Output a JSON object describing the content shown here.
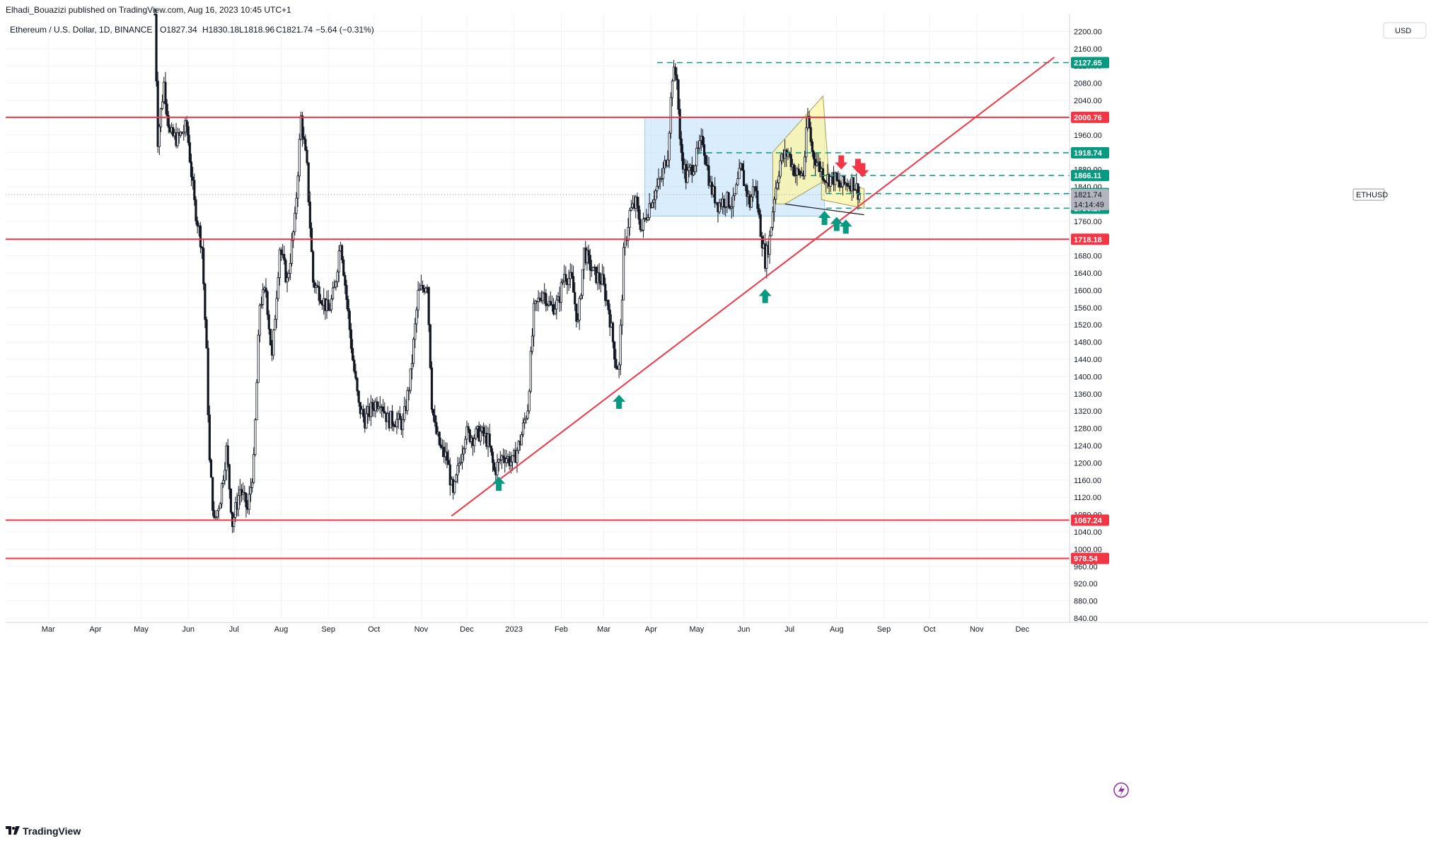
{
  "publisher": "Elhadi_Bouazizi published on TradingView.com, Aug 16, 2023 10:45 UTC+1",
  "footer": {
    "brand": "TradingView",
    "logo_icon": "tradingview-logo-icon"
  },
  "colors": {
    "up": "#131722",
    "down": "#131722",
    "support_line": "#f23645",
    "dashed_line": "#089981",
    "trendline": "#f23645",
    "range_box": "#bbdefb",
    "channel": "#fff59d",
    "up_arrow": "#089981",
    "down_arrow": "#f23645"
  },
  "chart_data": {
    "type": "candlestick",
    "title": "Ethereum / U.S. Dollar, 1D, BINANCE",
    "ohlc_header": {
      "o": "O1827.34",
      "h": "H1830.18",
      "l": "L1818.96",
      "c": "C1821.74",
      "chg": "−5.64 (−0.31%)"
    },
    "currency": "USD",
    "symbol_label": "ETHUSD",
    "last_price": "1821.74",
    "countdown": "14:14:49",
    "ylim": [
      840,
      2240
    ],
    "y_ticks": [
      "840.00",
      "880.00",
      "920.00",
      "960.00",
      "1000.00",
      "1040.00",
      "1080.00",
      "1120.00",
      "1160.00",
      "1200.00",
      "1240.00",
      "1280.00",
      "1320.00",
      "1360.00",
      "1400.00",
      "1440.00",
      "1480.00",
      "1520.00",
      "1560.00",
      "1600.00",
      "1640.00",
      "1680.00",
      "1720.00",
      "1760.00",
      "1800.00",
      "1840.00",
      "1880.00",
      "1920.00",
      "1960.00",
      "2000.00",
      "2040.00",
      "2080.00",
      "2120.00",
      "2160.00",
      "2200.00"
    ],
    "x_ticks": [
      "Mar",
      "Apr",
      "May",
      "Jun",
      "Jul",
      "Aug",
      "Sep",
      "Oct",
      "Nov",
      "Dec",
      "2023",
      "Feb",
      "Mar",
      "Apr",
      "May",
      "Jun",
      "Jul",
      "Aug",
      "Sep",
      "Oct",
      "Nov",
      "Dec"
    ],
    "x_tick_dates": [
      "2022-03-01",
      "2022-04-01",
      "2022-05-01",
      "2022-06-01",
      "2022-07-01",
      "2022-08-01",
      "2022-09-01",
      "2022-10-01",
      "2022-11-01",
      "2022-12-01",
      "2023-01-01",
      "2023-02-01",
      "2023-03-01",
      "2023-04-01",
      "2023-05-01",
      "2023-06-01",
      "2023-07-01",
      "2023-08-01",
      "2023-09-01",
      "2023-10-01",
      "2023-11-01",
      "2023-12-01"
    ],
    "price_path": [
      [
        "2022-05-10",
        2240
      ],
      [
        "2022-05-12",
        1950
      ],
      [
        "2022-05-16",
        2080
      ],
      [
        "2022-05-20",
        1960
      ],
      [
        "2022-05-25",
        1950
      ],
      [
        "2022-05-31",
        1980
      ],
      [
        "2022-06-05",
        1800
      ],
      [
        "2022-06-10",
        1700
      ],
      [
        "2022-06-13",
        1450
      ],
      [
        "2022-06-15",
        1200
      ],
      [
        "2022-06-18",
        1060
      ],
      [
        "2022-06-22",
        1120
      ],
      [
        "2022-06-26",
        1230
      ],
      [
        "2022-06-30",
        1060
      ],
      [
        "2022-07-05",
        1140
      ],
      [
        "2022-07-10",
        1090
      ],
      [
        "2022-07-14",
        1200
      ],
      [
        "2022-07-18",
        1570
      ],
      [
        "2022-07-22",
        1600
      ],
      [
        "2022-07-26",
        1440
      ],
      [
        "2022-07-31",
        1700
      ],
      [
        "2022-08-05",
        1620
      ],
      [
        "2022-08-10",
        1760
      ],
      [
        "2022-08-14",
        2000
      ],
      [
        "2022-08-18",
        1880
      ],
      [
        "2022-08-22",
        1620
      ],
      [
        "2022-08-27",
        1590
      ],
      [
        "2022-09-01",
        1550
      ],
      [
        "2022-09-05",
        1600
      ],
      [
        "2022-09-09",
        1720
      ],
      [
        "2022-09-13",
        1580
      ],
      [
        "2022-09-17",
        1440
      ],
      [
        "2022-09-21",
        1330
      ],
      [
        "2022-09-25",
        1300
      ],
      [
        "2022-09-30",
        1330
      ],
      [
        "2022-10-05",
        1350
      ],
      [
        "2022-10-10",
        1300
      ],
      [
        "2022-10-15",
        1300
      ],
      [
        "2022-10-20",
        1290
      ],
      [
        "2022-10-25",
        1400
      ],
      [
        "2022-10-30",
        1590
      ],
      [
        "2022-11-05",
        1620
      ],
      [
        "2022-11-08",
        1340
      ],
      [
        "2022-11-10",
        1280
      ],
      [
        "2022-11-14",
        1230
      ],
      [
        "2022-11-18",
        1210
      ],
      [
        "2022-11-22",
        1120
      ],
      [
        "2022-11-26",
        1200
      ],
      [
        "2022-11-30",
        1270
      ],
      [
        "2022-12-05",
        1260
      ],
      [
        "2022-12-10",
        1270
      ],
      [
        "2022-12-15",
        1250
      ],
      [
        "2022-12-19",
        1180
      ],
      [
        "2022-12-25",
        1220
      ],
      [
        "2022-12-31",
        1200
      ],
      [
        "2023-01-05",
        1250
      ],
      [
        "2023-01-10",
        1330
      ],
      [
        "2023-01-14",
        1550
      ],
      [
        "2023-01-20",
        1600
      ],
      [
        "2023-01-25",
        1560
      ],
      [
        "2023-01-30",
        1570
      ],
      [
        "2023-02-03",
        1640
      ],
      [
        "2023-02-08",
        1620
      ],
      [
        "2023-02-12",
        1520
      ],
      [
        "2023-02-16",
        1690
      ],
      [
        "2023-02-22",
        1640
      ],
      [
        "2023-02-28",
        1620
      ],
      [
        "2023-03-04",
        1560
      ],
      [
        "2023-03-09",
        1430
      ],
      [
        "2023-03-11",
        1420
      ],
      [
        "2023-03-14",
        1680
      ],
      [
        "2023-03-18",
        1780
      ],
      [
        "2023-03-22",
        1800
      ],
      [
        "2023-03-26",
        1740
      ],
      [
        "2023-03-31",
        1800
      ],
      [
        "2023-04-04",
        1830
      ],
      [
        "2023-04-08",
        1860
      ],
      [
        "2023-04-12",
        1920
      ],
      [
        "2023-04-15",
        2100
      ],
      [
        "2023-04-18",
        2100
      ],
      [
        "2023-04-20",
        1940
      ],
      [
        "2023-04-24",
        1860
      ],
      [
        "2023-04-30",
        1900
      ],
      [
        "2023-05-05",
        1950
      ],
      [
        "2023-05-10",
        1840
      ],
      [
        "2023-05-15",
        1800
      ],
      [
        "2023-05-20",
        1810
      ],
      [
        "2023-05-25",
        1800
      ],
      [
        "2023-05-30",
        1880
      ],
      [
        "2023-06-05",
        1800
      ],
      [
        "2023-06-08",
        1850
      ],
      [
        "2023-06-12",
        1740
      ],
      [
        "2023-06-15",
        1670
      ],
      [
        "2023-06-18",
        1720
      ],
      [
        "2023-06-21",
        1820
      ],
      [
        "2023-06-25",
        1900
      ],
      [
        "2023-06-30",
        1920
      ],
      [
        "2023-07-05",
        1870
      ],
      [
        "2023-07-10",
        1870
      ],
      [
        "2023-07-13",
        2000
      ],
      [
        "2023-07-16",
        1920
      ],
      [
        "2023-07-20",
        1890
      ],
      [
        "2023-07-25",
        1860
      ],
      [
        "2023-07-30",
        1860
      ],
      [
        "2023-08-03",
        1840
      ],
      [
        "2023-08-08",
        1850
      ],
      [
        "2023-08-12",
        1850
      ],
      [
        "2023-08-16",
        1821.74
      ]
    ],
    "horizontal_levels": [
      {
        "label": "2000.76",
        "value": 2000.76,
        "style": "solid"
      },
      {
        "label": "1718.18",
        "value": 1718.18,
        "style": "solid"
      },
      {
        "label": "1067.24",
        "value": 1067.24,
        "style": "solid"
      },
      {
        "label": "978.54",
        "value": 978.54,
        "style": "solid"
      },
      {
        "label": "2127.65",
        "value": 2127.65,
        "style": "dashed",
        "from": "2023-04-05"
      },
      {
        "label": "1918.74",
        "value": 1918.74,
        "style": "dashed",
        "from": "2023-05-01"
      },
      {
        "label": "1866.11",
        "value": 1866.11,
        "style": "dashed",
        "from": "2023-07-15"
      },
      {
        "label": "1824.14",
        "value": 1824.14,
        "style": "dashed",
        "from": "2023-07-25"
      },
      {
        "label": "1790.27",
        "value": 1790.27,
        "style": "dashed",
        "from": "2023-07-25"
      }
    ],
    "trendlines": [
      {
        "name": "ascending-support",
        "from": [
          "2022-11-21",
          1077
        ],
        "to": [
          "2023-12-22",
          2140
        ]
      },
      {
        "name": "channel-lower",
        "from": [
          "2023-06-28",
          1800
        ],
        "to": [
          "2023-08-19",
          1775
        ]
      }
    ],
    "range_box": {
      "from": "2023-03-28",
      "to": "2023-07-24",
      "top": 2000,
      "bottom": 1772
    },
    "channel_up": [
      [
        "2023-06-20",
        1800
      ],
      [
        "2023-06-20",
        1920
      ],
      [
        "2023-07-23",
        2050
      ],
      [
        "2023-07-27",
        1860
      ],
      [
        "2023-06-28",
        1800
      ]
    ],
    "channel_down": [
      [
        "2023-07-22",
        1870
      ],
      [
        "2023-08-19",
        1835
      ],
      [
        "2023-08-19",
        1790
      ],
      [
        "2023-07-22",
        1810
      ]
    ],
    "up_arrows": [
      [
        "2022-12-22",
        1150
      ],
      [
        "2023-03-11",
        1340
      ],
      [
        "2023-06-15",
        1585
      ],
      [
        "2023-07-24",
        1766
      ],
      [
        "2023-08-01",
        1752
      ],
      [
        "2023-08-07",
        1746
      ]
    ],
    "down_arrows": [
      [
        "2023-08-04",
        1898
      ],
      [
        "2023-08-15",
        1890
      ],
      [
        "2023-08-18",
        1880
      ]
    ]
  }
}
